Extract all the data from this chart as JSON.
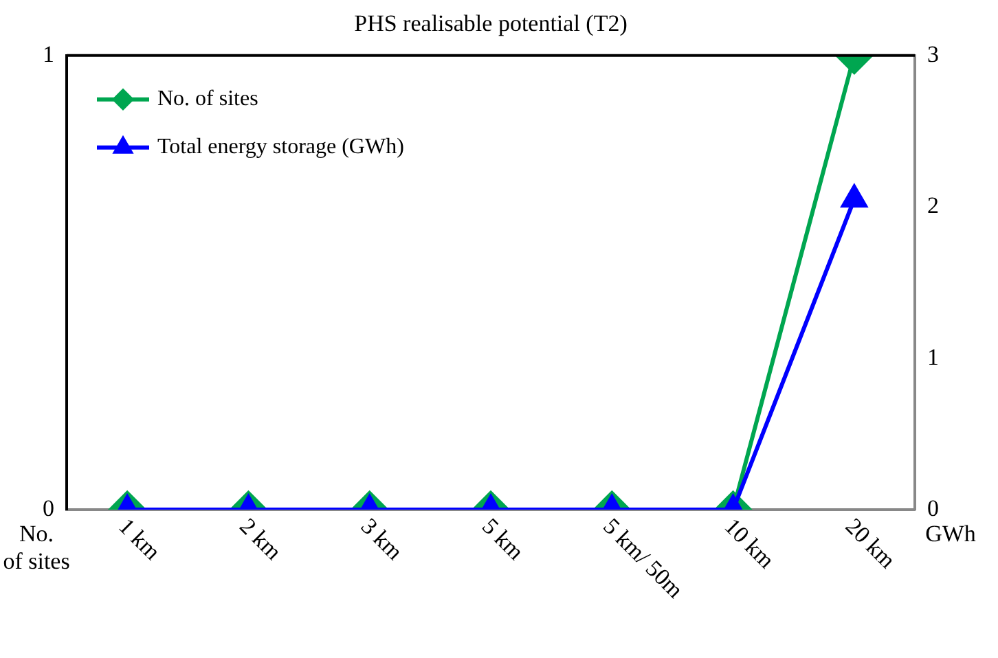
{
  "chart_data": {
    "type": "line",
    "title": "PHS realisable potential (T2)",
    "ylabel": "No. of sites",
    "y2label": "GWh",
    "categories": [
      "1 km",
      "2 km",
      "3 km",
      "5 km",
      "5 km/ 50m",
      "10 km",
      "20 km"
    ],
    "series": [
      {
        "name": "No. of sites",
        "color": "#00a650",
        "marker": "diamond",
        "values": [
          0,
          0,
          0,
          0,
          0,
          0,
          1
        ]
      },
      {
        "name": "Total energy storage (GWh)",
        "color": "#0000ff",
        "marker": "triangle",
        "axis": "y2",
        "values": [
          0,
          0,
          0,
          0,
          0,
          0,
          2.05
        ]
      }
    ],
    "ylim": [
      0,
      1
    ],
    "yticks": [
      0,
      1
    ],
    "y2lim": [
      0,
      3
    ],
    "y2ticks": [
      0,
      1,
      2,
      3
    ],
    "grid": false,
    "legend": "top left",
    "line_style": "solid"
  }
}
